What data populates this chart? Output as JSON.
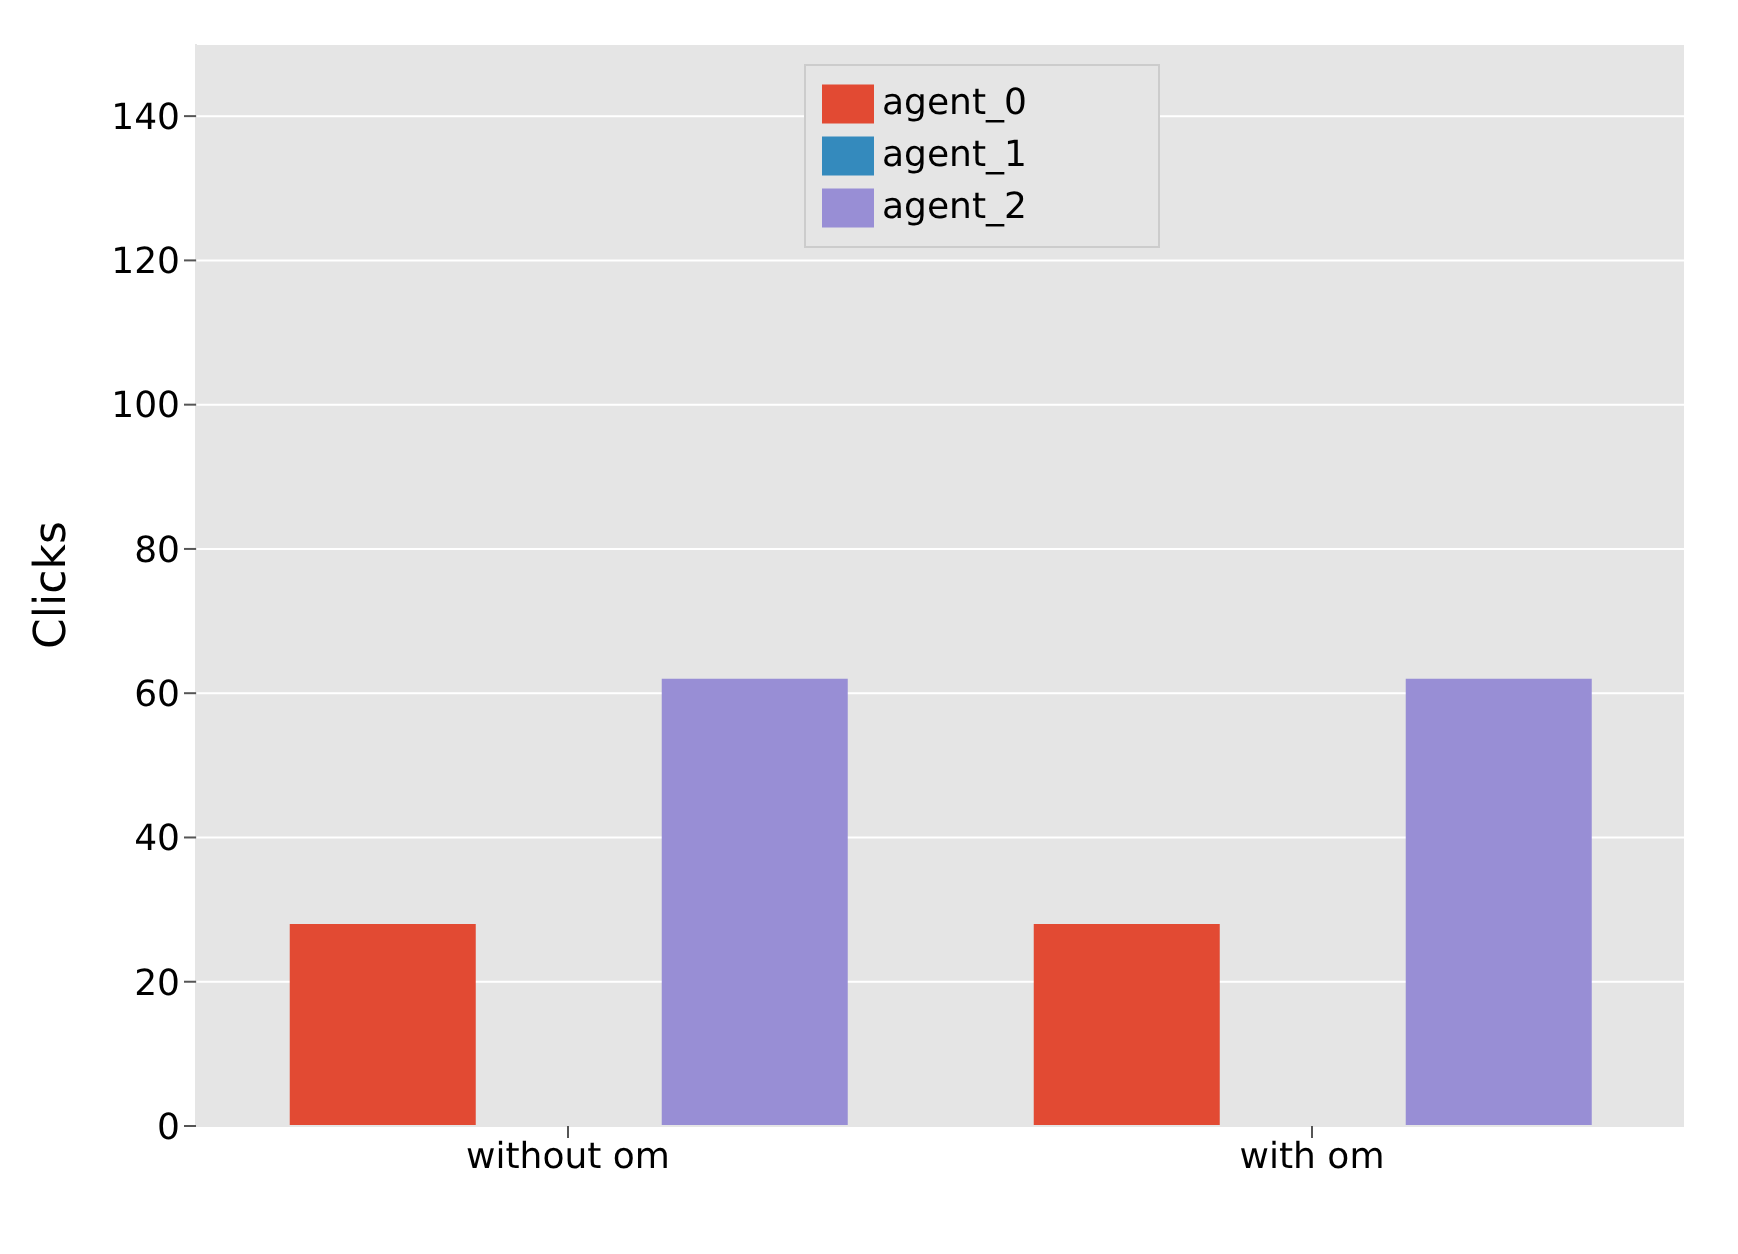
{
  "chart_data": {
    "type": "bar",
    "ylabel": "Clicks",
    "categories": [
      "without om",
      "with om"
    ],
    "series": [
      {
        "name": "agent_0",
        "color": "#e24a33",
        "values": [
          28,
          28
        ]
      },
      {
        "name": "agent_1",
        "color": "#348abd",
        "values": [
          null,
          null
        ]
      },
      {
        "name": "agent_2",
        "color": "#988ed5",
        "values": [
          62,
          62
        ]
      }
    ],
    "ylim": [
      0,
      150
    ],
    "yticks": [
      0,
      20,
      40,
      60,
      80,
      100,
      120,
      140
    ],
    "grid": "y",
    "legend": "top"
  }
}
